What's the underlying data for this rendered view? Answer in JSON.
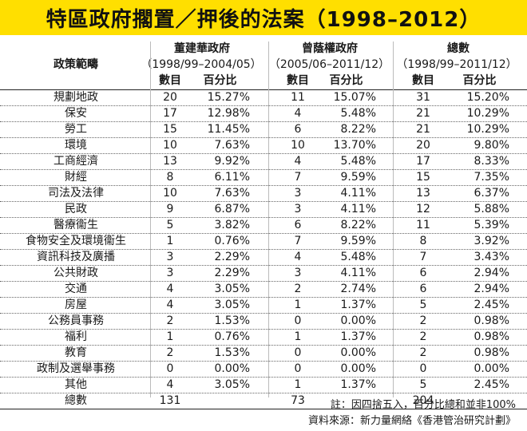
{
  "title": "特區政府擱置／押後的法案（1998–2012）",
  "header": {
    "category_label": "政策範疇",
    "govts": [
      {
        "name": "董建華政府",
        "period": "（1998/99–2004/05）"
      },
      {
        "name": "曾蔭權政府",
        "period": "（2005/06–2011/12）"
      },
      {
        "name": "總數",
        "period": "（1998/99–2011/12）"
      }
    ],
    "count_label": "數目",
    "percent_label": "百分比"
  },
  "rows": [
    {
      "name": "規劃地政",
      "n1": "20",
      "p1": "15.27%",
      "n2": "11",
      "p2": "15.07%",
      "n3": "31",
      "p3": "15.20%"
    },
    {
      "name": "保安",
      "n1": "17",
      "p1": "12.98%",
      "n2": "4",
      "p2": "5.48%",
      "n3": "21",
      "p3": "10.29%"
    },
    {
      "name": "勞工",
      "n1": "15",
      "p1": "11.45%",
      "n2": "6",
      "p2": "8.22%",
      "n3": "21",
      "p3": "10.29%"
    },
    {
      "name": "環境",
      "n1": "10",
      "p1": "7.63%",
      "n2": "10",
      "p2": "13.70%",
      "n3": "20",
      "p3": "9.80%"
    },
    {
      "name": "工商經濟",
      "n1": "13",
      "p1": "9.92%",
      "n2": "4",
      "p2": "5.48%",
      "n3": "17",
      "p3": "8.33%"
    },
    {
      "name": "財經",
      "n1": "8",
      "p1": "6.11%",
      "n2": "7",
      "p2": "9.59%",
      "n3": "15",
      "p3": "7.35%"
    },
    {
      "name": "司法及法律",
      "n1": "10",
      "p1": "7.63%",
      "n2": "3",
      "p2": "4.11%",
      "n3": "13",
      "p3": "6.37%"
    },
    {
      "name": "民政",
      "n1": "9",
      "p1": "6.87%",
      "n2": "3",
      "p2": "4.11%",
      "n3": "12",
      "p3": "5.88%"
    },
    {
      "name": "醫療衞生",
      "n1": "5",
      "p1": "3.82%",
      "n2": "6",
      "p2": "8.22%",
      "n3": "11",
      "p3": "5.39%"
    },
    {
      "name": "食物安全及環境衞生",
      "n1": "1",
      "p1": "0.76%",
      "n2": "7",
      "p2": "9.59%",
      "n3": "8",
      "p3": "3.92%"
    },
    {
      "name": "資訊科技及廣播",
      "n1": "3",
      "p1": "2.29%",
      "n2": "4",
      "p2": "5.48%",
      "n3": "7",
      "p3": "3.43%"
    },
    {
      "name": "公共財政",
      "n1": "3",
      "p1": "2.29%",
      "n2": "3",
      "p2": "4.11%",
      "n3": "6",
      "p3": "2.94%"
    },
    {
      "name": "交通",
      "n1": "4",
      "p1": "3.05%",
      "n2": "2",
      "p2": "2.74%",
      "n3": "6",
      "p3": "2.94%"
    },
    {
      "name": "房屋",
      "n1": "4",
      "p1": "3.05%",
      "n2": "1",
      "p2": "1.37%",
      "n3": "5",
      "p3": "2.45%"
    },
    {
      "name": "公務員事務",
      "n1": "2",
      "p1": "1.53%",
      "n2": "0",
      "p2": "0.00%",
      "n3": "2",
      "p3": "0.98%"
    },
    {
      "name": "福利",
      "n1": "1",
      "p1": "0.76%",
      "n2": "1",
      "p2": "1.37%",
      "n3": "2",
      "p3": "0.98%"
    },
    {
      "name": "教育",
      "n1": "2",
      "p1": "1.53%",
      "n2": "0",
      "p2": "0.00%",
      "n3": "2",
      "p3": "0.98%"
    },
    {
      "name": "政制及選舉事務",
      "n1": "0",
      "p1": "0.00%",
      "n2": "0",
      "p2": "0.00%",
      "n3": "0",
      "p3": "0.00%"
    },
    {
      "name": "其他",
      "n1": "4",
      "p1": "3.05%",
      "n2": "1",
      "p2": "1.37%",
      "n3": "5",
      "p3": "2.45%"
    }
  ],
  "total": {
    "name": "總數",
    "n1": "131",
    "n2": "73",
    "n3": "204"
  },
  "notes": {
    "note": "註：因四捨五入，百分比總和並非100%",
    "source": "資料來源：新力量網絡《香港管治研究計劃》"
  }
}
